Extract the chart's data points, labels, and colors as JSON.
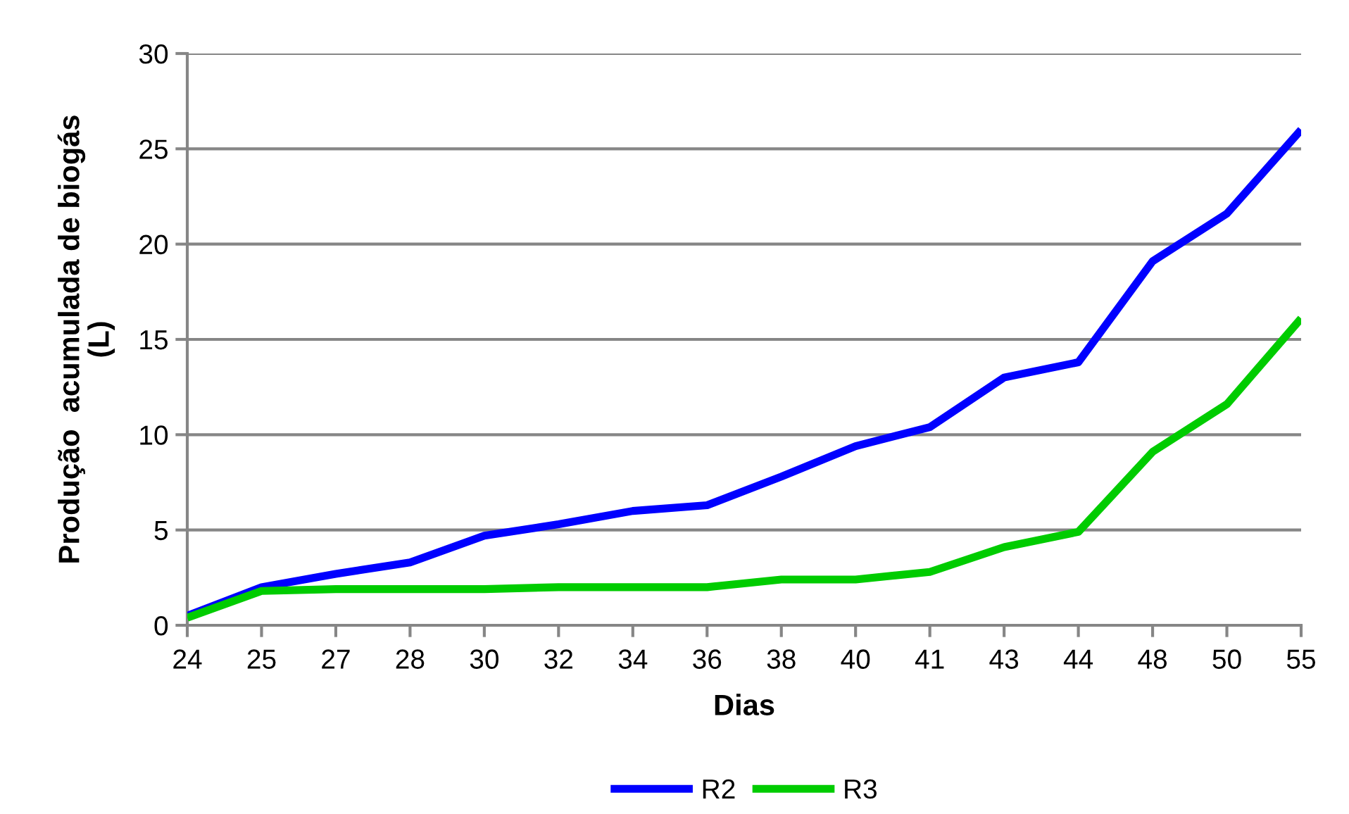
{
  "chart_data": {
    "type": "line",
    "xlabel": "Dias",
    "ylabel": "Produção  acumulada de biogás\n(L)",
    "categories": [
      "24",
      "25",
      "27",
      "28",
      "30",
      "32",
      "34",
      "36",
      "38",
      "40",
      "41",
      "43",
      "44",
      "48",
      "50",
      "55"
    ],
    "series": [
      {
        "name": "R2",
        "color": "#0000ff",
        "values": [
          0.5,
          2.0,
          2.7,
          3.3,
          4.7,
          5.3,
          6.0,
          6.3,
          7.8,
          9.4,
          10.4,
          13.0,
          13.8,
          19.1,
          21.6,
          26.0
        ]
      },
      {
        "name": "R3",
        "color": "#00cc00",
        "values": [
          0.4,
          1.8,
          1.9,
          1.9,
          1.9,
          2.0,
          2.0,
          2.0,
          2.4,
          2.4,
          2.8,
          4.1,
          4.9,
          9.1,
          11.6,
          16.1
        ]
      }
    ],
    "ylim": [
      0,
      30
    ],
    "yticks": [
      0,
      5,
      10,
      15,
      20,
      25,
      30
    ],
    "grid": "y",
    "legend": "bottom",
    "marker": "none",
    "line_style": "solid"
  }
}
